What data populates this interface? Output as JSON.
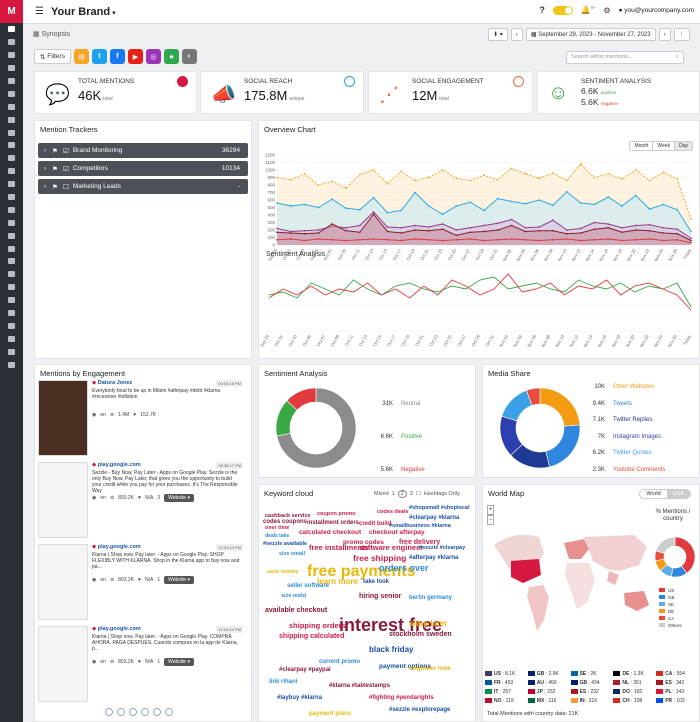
{
  "app": {
    "brand": "Your Brand",
    "breadcrumb": "Synopsis",
    "user": "you@yourcompany.com",
    "date_range": "September 29, 2023 - November 27, 2023",
    "search_placeholder": "Search within mentions...",
    "filters_label": "Filters",
    "bell_count": "9+"
  },
  "kpis": [
    {
      "label": "TOTAL MENTIONS",
      "value": "46K",
      "unit": "total",
      "icon": "chat-icon",
      "color": "#d6173f"
    },
    {
      "label": "SOCIAL REACH",
      "value": "175.8M",
      "unit": "unique",
      "icon": "megaphone-icon",
      "color": "#28a8d8"
    },
    {
      "label": "SOCIAL ENGAGEMENT",
      "value": "12M",
      "unit": "total",
      "icon": "share-icon",
      "color": "#ef6a3a"
    },
    {
      "label": "SENTIMENT ANALYSIS",
      "value": "6.6K",
      "value2": "5.6K",
      "pos_label": "positive",
      "neg_label": "negative",
      "icon": "smile-icon",
      "color": "#3aa845"
    }
  ],
  "trackers": {
    "title": "Mention Trackers",
    "items": [
      {
        "label": "Brand Monitoring",
        "count": "36294"
      },
      {
        "label": "Competitors",
        "count": "10134"
      },
      {
        "label": "Marketing Leads",
        "count": "-"
      }
    ]
  },
  "overview": {
    "title": "Overview Chart",
    "tabs": [
      "Month",
      "Week",
      "Day"
    ],
    "sentiment_title": "Sentiment Analysis"
  },
  "chart_data": [
    {
      "type": "line",
      "title": "Overview Chart",
      "x": [
        "Sep 29",
        "Oct 01",
        "Oct 03",
        "Oct 05",
        "Oct 07",
        "Oct 09",
        "Oct 11",
        "Oct 13",
        "Oct 15",
        "Oct 17",
        "Oct 19",
        "Oct 21",
        "Oct 23",
        "Oct 25",
        "Oct 27",
        "Oct 29",
        "Oct 31",
        "Nov 02",
        "Nov 04",
        "Nov 06",
        "Nov 08",
        "Nov 10",
        "Nov 12",
        "Nov 14",
        "Nov 16",
        "Nov 18",
        "Nov 20",
        "Nov 22",
        "Nov 24",
        "Nov 26",
        "Today"
      ],
      "ylim": [
        0,
        1200
      ],
      "yticks": [
        0,
        100,
        200,
        300,
        400,
        500,
        600,
        700,
        800,
        900,
        1000,
        1100,
        1200
      ],
      "series": [
        {
          "values": [
            900,
            870,
            950,
            800,
            850,
            760,
            940,
            1000,
            820,
            980,
            860,
            900,
            1000,
            890,
            860,
            930,
            870,
            1020,
            950,
            890,
            960,
            860,
            1080,
            900,
            950,
            880,
            1000,
            860,
            970,
            880,
            350
          ]
        },
        {
          "values": [
            560,
            520,
            540,
            500,
            610,
            490,
            470,
            630,
            430,
            460,
            700,
            520,
            410,
            520,
            570,
            460,
            620,
            580,
            550,
            600,
            530,
            710,
            560,
            540,
            640,
            520,
            660,
            480,
            540,
            470,
            180
          ]
        },
        {
          "values": [
            220,
            180,
            190,
            200,
            250,
            230,
            260,
            440,
            240,
            230,
            260,
            240,
            280,
            200,
            230,
            260,
            290,
            340,
            230,
            240,
            330,
            200,
            220,
            300,
            280,
            230,
            260,
            270,
            230,
            210,
            90
          ]
        },
        {
          "values": [
            170,
            160,
            150,
            160,
            280,
            190,
            170,
            410,
            180,
            160,
            200,
            190,
            210,
            130,
            170,
            180,
            200,
            260,
            180,
            190,
            190,
            150,
            160,
            210,
            230,
            170,
            200,
            190,
            160,
            150,
            60
          ]
        },
        {
          "values": [
            70,
            80,
            60,
            80,
            70,
            60,
            70,
            80,
            70,
            60,
            80,
            70,
            60,
            70,
            80,
            60,
            70,
            80,
            70,
            60,
            70,
            80,
            60,
            70,
            80,
            60,
            70,
            80,
            60,
            70,
            30
          ]
        }
      ]
    },
    {
      "type": "line",
      "title": "Sentiment Analysis",
      "x": [
        "Sep 29",
        "Oct 01",
        "Oct 03",
        "Oct 05",
        "Oct 07",
        "Oct 09",
        "Oct 11",
        "Oct 13",
        "Oct 15",
        "Oct 17",
        "Oct 19",
        "Oct 21",
        "Oct 23",
        "Oct 25",
        "Oct 27",
        "Oct 29",
        "Oct 31",
        "Nov 02",
        "Nov 04",
        "Nov 06",
        "Nov 08",
        "Nov 10",
        "Nov 12",
        "Nov 14",
        "Nov 16",
        "Nov 18",
        "Nov 20",
        "Nov 22",
        "Nov 24",
        "Nov 26",
        "Today"
      ],
      "series": [
        {
          "values": [
            60,
            65,
            55,
            80,
            70,
            60,
            85,
            70,
            60,
            75,
            80,
            70,
            65,
            75,
            70,
            85,
            90,
            70,
            75,
            80,
            70,
            65,
            85,
            75,
            70,
            80,
            65,
            75,
            70,
            80,
            40
          ]
        },
        {
          "values": [
            55,
            70,
            60,
            75,
            60,
            70,
            65,
            80,
            60,
            70,
            55,
            75,
            60,
            85,
            75,
            60,
            70,
            95,
            65,
            70,
            80,
            60,
            75,
            70,
            85,
            60,
            75,
            80,
            70,
            60,
            35
          ]
        }
      ]
    },
    {
      "type": "pie",
      "title": "Sentiment Analysis",
      "categories": [
        "Neutral",
        "Positive",
        "Negative"
      ],
      "values": [
        31,
        6.6,
        5.6
      ],
      "labels": [
        "31K",
        "6.6K",
        "5.6K"
      ],
      "colors": [
        "#8c8c8c",
        "#3aa845",
        "#e0393e"
      ]
    },
    {
      "type": "pie",
      "title": "Media Share",
      "categories": [
        "Other Websites",
        "Tweets",
        "Twitter Replies",
        "Instagram Images",
        "Twitter Quotes",
        "Youtube Comments"
      ],
      "values": [
        10,
        9.4,
        7.1,
        7,
        6.2,
        2.3
      ],
      "labels": [
        "10K",
        "9.4K",
        "7.1K",
        "7K",
        "6.2K",
        "2.3K"
      ],
      "colors": [
        "#f39c12",
        "#2e86de",
        "#1f3a93",
        "#2c3eb0",
        "#3aa0e8",
        "#e74c3c"
      ]
    },
    {
      "type": "pie",
      "title": "% Mentions / country",
      "categories": [
        "US",
        "GB",
        "SE",
        "DE",
        "CA",
        "Others"
      ],
      "values": [
        40,
        13,
        10,
        9,
        8,
        20
      ],
      "colors": [
        "#e0393e",
        "#2e86de",
        "#5dade2",
        "#f39c12",
        "#e74c3c",
        "#cccccc"
      ]
    }
  ],
  "engagement": {
    "title": "Mentions by Engagement",
    "posts": [
      {
        "source": "Datura Jonez",
        "time": "09:03:18 PM",
        "text": "Everybody bout to be up in Miami #afterpay #debt #klarna #recession #inflation",
        "lang": "en",
        "reach": "1.4M",
        "eng": "152.7K"
      },
      {
        "source": "play.google.com",
        "time": "06:38:17 PM",
        "text": "Sezzle - Buy Now, Pay Later - Apps on Google Play. Sezzle is the only Buy Now, Pay Later, that gives you the opportunity to build your credit while you pay for your purchases. It's The Responsible Way",
        "lang": "en",
        "reach": "893.2K",
        "eng": "N/A",
        "count": "3",
        "button": "Website"
      },
      {
        "source": "play.google.com",
        "time": "12:03:10 PM",
        "text": "Klarna | Shop now. Pay later. - Apps on Google Play. SHOP FLEXIBLY WITH KLARNA. Shop in the Klarna app to buy now and pa...",
        "lang": "en",
        "reach": "893.2K",
        "eng": "N/A",
        "count": "1",
        "button": "Website"
      },
      {
        "source": "play.google.com",
        "time": "12:03:10 PM",
        "text": "Klarna | Shop now. Pay later. - Apps on Google Play. COMPRA AHORA. PAGA DESPUÉS. Cuando compras en la app de Klarna, p...",
        "lang": "en",
        "reach": "893.2K",
        "eng": "N/A",
        "count": "1",
        "button": "Website"
      }
    ]
  },
  "sentiment_card": {
    "title": "Sentiment Analysis"
  },
  "media_card": {
    "title": "Media Share"
  },
  "keywords": {
    "title": "Keyword cloud",
    "modes": [
      "Mixed",
      "1",
      "2",
      "3"
    ],
    "hashtags_label": "Hashtags Only",
    "words": [
      [
        "cashback service",
        "#8a1a3a",
        5.5
      ],
      [
        "coupon promo",
        "#c81f4a",
        5.5
      ],
      [
        "codes deals",
        "#c81f4a",
        5.5
      ],
      [
        "#shopsmall #shoplocal",
        "#1a4fa0",
        5.5
      ],
      [
        "codes coupons",
        "#8a1a3a",
        6
      ],
      [
        "#clearpay #klarna",
        "#1a4fa0",
        6
      ],
      [
        "over time",
        "#c81f4a",
        5.5
      ],
      [
        "installment orders",
        "#8a1a3a",
        6
      ],
      [
        "credit build",
        "#c81f4a",
        6
      ],
      [
        "#smallbusiness #klarna",
        "#1a4fa0",
        5.5
      ],
      [
        "deals take",
        "#2e8bd8",
        5
      ],
      [
        "calculated checkout",
        "#c81f4a",
        6.5
      ],
      [
        "checkout afterpay",
        "#c81f4a",
        6.5
      ],
      [
        "#sezzle available",
        "#1a4fa0",
        5.5
      ],
      [
        "promo codes",
        "#c81f4a",
        6.5
      ],
      [
        "free delivery",
        "#c81f4a",
        7
      ],
      [
        "free installments",
        "#c81f4a",
        7.5
      ],
      [
        "software engineer",
        "#c81f4a",
        7.5
      ],
      [
        "#sezzle #clearpay",
        "#1a4fa0",
        5.5
      ],
      [
        "size small",
        "#2e8bd8",
        5.5
      ],
      [
        "free shipping",
        "#c81f4a",
        8.5
      ],
      [
        "#afterpay #klarna",
        "#1a4fa0",
        6
      ],
      [
        "free payments",
        "#e8b70a",
        16
      ],
      [
        "save money",
        "#e8b70a",
        5.5
      ],
      [
        "learn more",
        "#e8b70a",
        8
      ],
      [
        "take look",
        "#1a4fa0",
        6
      ],
      [
        "orders over",
        "#2e8bd8",
        9
      ],
      [
        "size mold",
        "#2e8bd8",
        5.5
      ],
      [
        "seller software",
        "#2e8bd8",
        6
      ],
      [
        "hiring senior",
        "#8a1a3a",
        7
      ],
      [
        "berlin germany",
        "#2e8bd8",
        6
      ],
      [
        "available checkout",
        "#8a1a3a",
        7
      ],
      [
        "interest free",
        "#8a1a3a",
        18
      ],
      [
        "shipping orders",
        "#c81f4a",
        7.5
      ],
      [
        "shop later",
        "#e8b70a",
        8
      ],
      [
        "stockholm sweden",
        "#8a1a3a",
        7
      ],
      [
        "shipping calculated",
        "#c81f4a",
        7
      ],
      [
        "black friday",
        "#1a4fa0",
        8
      ],
      [
        "payment options",
        "#1a4fa0",
        6.5
      ],
      [
        "current promo",
        "#2e8bd8",
        6
      ],
      [
        "#clearpay #paypal",
        "#8a1a3a",
        6
      ],
      [
        "engineer love",
        "#e8b70a",
        6.5
      ],
      [
        "link rihani",
        "#2e8bd8",
        6
      ],
      [
        "#klarna #tablestamps",
        "#8a1a3a",
        6
      ],
      [
        "#laybuy #klarna",
        "#1a4fa0",
        6
      ],
      [
        "#fighting #pendarights",
        "#c81f4a",
        6
      ],
      [
        "#sezzle #explorepage",
        "#1a4fa0",
        6
      ],
      [
        "payment plans",
        "#e8b70a",
        6
      ]
    ]
  },
  "worldmap": {
    "title": "World Map",
    "tabs": [
      "World",
      "USA"
    ],
    "legend_title": "% Mentions / country",
    "legend": [
      "US",
      "GB",
      "SE",
      "DE",
      "CA",
      "Others"
    ],
    "countries": [
      {
        "code": "US",
        "n": "8.1K"
      },
      {
        "code": "GB",
        "n": "2.9K"
      },
      {
        "code": "SE",
        "n": "2K"
      },
      {
        "code": "DE",
        "n": "1.3K"
      },
      {
        "code": "CA",
        "n": "554"
      },
      {
        "code": "FR",
        "n": "453"
      },
      {
        "code": "AU",
        "n": "450"
      },
      {
        "code": "GB",
        "n": "434"
      },
      {
        "code": "NL",
        "n": "351"
      },
      {
        "code": "ES",
        "n": "342"
      },
      {
        "code": "IT",
        "n": "257"
      },
      {
        "code": "JP",
        "n": "232"
      },
      {
        "code": "ES",
        "n": "232"
      },
      {
        "code": "DO",
        "n": "182"
      },
      {
        "code": "PL",
        "n": "143"
      },
      {
        "code": "NO",
        "n": "119"
      },
      {
        "code": "MX",
        "n": "116"
      },
      {
        "code": "IN",
        "n": "316"
      },
      {
        "code": "CH",
        "n": "108"
      },
      {
        "code": "PR",
        "n": "103"
      }
    ],
    "total": "Total Mentions with country data: 21K"
  }
}
